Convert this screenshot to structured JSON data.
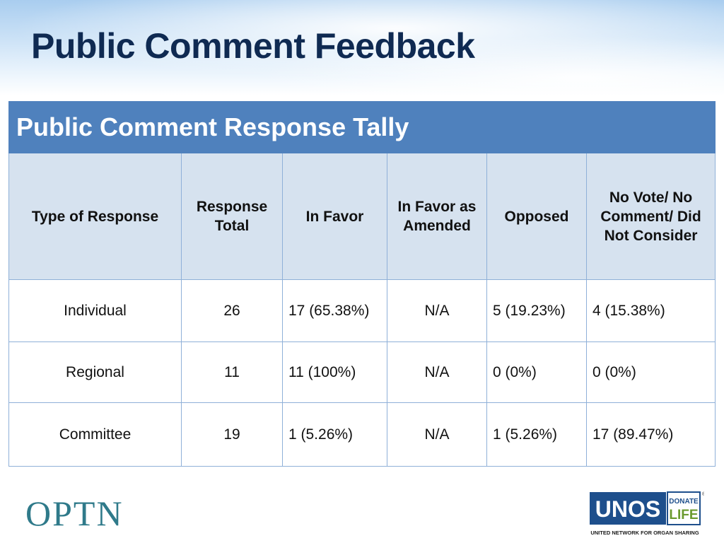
{
  "title": "Public Comment Feedback",
  "table": {
    "caption": "Public Comment Response Tally",
    "columns": [
      "Type of Response",
      "Response Total",
      "In Favor",
      "In Favor as Amended",
      "Opposed",
      "No Vote/ No Comment/ Did Not Consider"
    ],
    "rows": [
      [
        "Individual",
        "26",
        "17 (65.38%)",
        "N/A",
        "5 (19.23%)",
        "4 (15.38%)"
      ],
      [
        "Regional",
        "11",
        "11 (100%)",
        "N/A",
        "0 (0%)",
        "0 (0%)"
      ],
      [
        "Committee",
        "19",
        "1 (5.26%)",
        "N/A",
        "1 (5.26%)",
        "17 (89.47%)"
      ]
    ]
  },
  "footer": {
    "optn_logo": "OPTN",
    "unos_logo": "UNOS",
    "donate_life": "DONATE LIFE",
    "registered": "®",
    "unos_tagline": "UNITED NETWORK FOR ORGAN SHARING"
  },
  "colors": {
    "header_bar": "#4f81bd",
    "header_row": "#d6e2ef",
    "border": "#8fb0d8",
    "title": "#0f2a52",
    "unos_blue": "#1e4f8c",
    "donate_life_green": "#6a9a2e"
  }
}
